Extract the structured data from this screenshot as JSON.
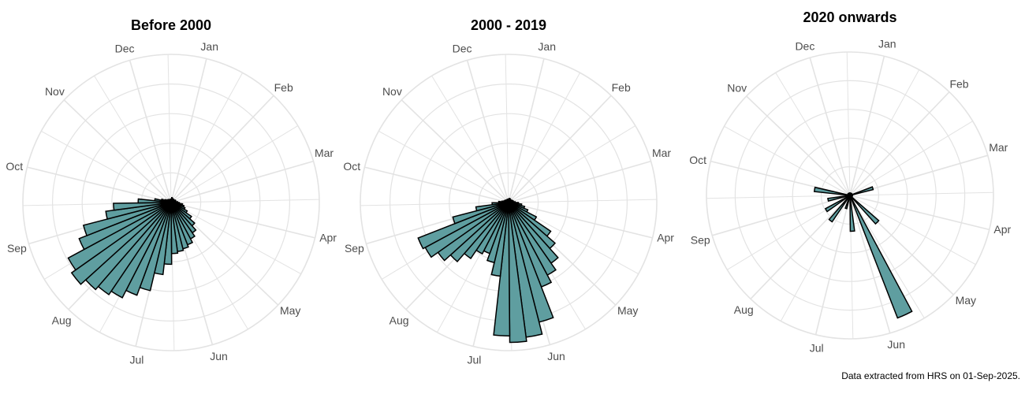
{
  "caption": "Data extracted from HRS on 01-Sep-2025.",
  "colors": {
    "bar_fill": "#5f9ea0",
    "bar_stroke": "#000000",
    "grid": "#e3e3e3",
    "label": "#4d4d4d"
  },
  "chart_data": [
    {
      "type": "bar",
      "coordinates": "polar",
      "title": "Before 2000",
      "months": [
        "Jan",
        "Feb",
        "Mar",
        "Apr",
        "May",
        "Jun",
        "Jul",
        "Aug",
        "Sep",
        "Oct",
        "Nov",
        "Dec"
      ],
      "month_label_day": [
        14,
        45,
        73,
        104,
        134,
        165,
        195,
        226,
        257,
        287,
        318,
        348
      ],
      "bin_days": 7,
      "bins_start_day": [
        0,
        7,
        14,
        21,
        28,
        35,
        42,
        49,
        56,
        63,
        70,
        77,
        84,
        91,
        98,
        105,
        112,
        119,
        126,
        133,
        140,
        147,
        154,
        161,
        168,
        175,
        182,
        189,
        196,
        203,
        210,
        217,
        224,
        231,
        238,
        245,
        252,
        259,
        266,
        273,
        280,
        287,
        294,
        301,
        308,
        315,
        322,
        329,
        336,
        343,
        350,
        357
      ],
      "values": [
        4,
        6,
        5,
        5,
        4,
        5,
        4,
        4,
        5,
        6,
        6,
        5,
        8,
        10,
        14,
        16,
        18,
        22,
        30,
        38,
        45,
        50,
        55,
        58,
        60,
        62,
        75,
        88,
        110,
        120,
        130,
        135,
        140,
        148,
        142,
        120,
        110,
        80,
        70,
        40,
        20,
        12,
        8,
        6,
        5,
        5,
        4,
        4,
        4,
        4,
        4,
        4
      ],
      "rmax": 180,
      "grid_rings": 5,
      "grid_spokes": 24
    },
    {
      "type": "bar",
      "coordinates": "polar",
      "title": "2000 - 2019",
      "months": [
        "Jan",
        "Feb",
        "Mar",
        "Apr",
        "May",
        "Jun",
        "Jul",
        "Aug",
        "Sep",
        "Oct",
        "Nov",
        "Dec"
      ],
      "month_label_day": [
        14,
        45,
        73,
        104,
        134,
        165,
        195,
        226,
        257,
        287,
        318,
        348
      ],
      "bin_days": 7,
      "bins_start_day": [
        0,
        7,
        14,
        21,
        28,
        35,
        42,
        49,
        56,
        63,
        70,
        77,
        84,
        91,
        98,
        105,
        112,
        119,
        126,
        133,
        140,
        147,
        154,
        161,
        168,
        175,
        182,
        189,
        196,
        203,
        210,
        217,
        224,
        231,
        238,
        245,
        252,
        259,
        266,
        273,
        280,
        287,
        294,
        301,
        308,
        315,
        322,
        329,
        336,
        343,
        350,
        357
      ],
      "values": [
        4,
        5,
        4,
        5,
        4,
        4,
        4,
        4,
        5,
        5,
        6,
        5,
        8,
        12,
        16,
        20,
        25,
        38,
        62,
        75,
        90,
        100,
        110,
        150,
        165,
        170,
        162,
        90,
        75,
        66,
        70,
        82,
        95,
        105,
        115,
        118,
        70,
        40,
        20,
        12,
        8,
        6,
        5,
        5,
        4,
        4,
        4,
        4,
        4,
        4,
        4,
        4
      ],
      "rmax": 180,
      "grid_rings": 5,
      "grid_spokes": 24
    },
    {
      "type": "bar",
      "coordinates": "polar",
      "title": "2020 onwards",
      "months": [
        "Jan",
        "Feb",
        "Mar",
        "Apr",
        "May",
        "Jun",
        "Jul",
        "Aug",
        "Sep",
        "Oct",
        "Nov",
        "Dec"
      ],
      "month_label_day": [
        14,
        45,
        73,
        104,
        134,
        165,
        195,
        226,
        257,
        287,
        318,
        348
      ],
      "bin_days": 7,
      "bins_start_day": [
        0,
        7,
        14,
        21,
        28,
        35,
        42,
        49,
        56,
        63,
        70,
        77,
        84,
        91,
        98,
        105,
        112,
        119,
        126,
        133,
        140,
        147,
        154,
        161,
        168,
        175,
        182,
        189,
        196,
        203,
        210,
        217,
        224,
        231,
        238,
        245,
        252,
        259,
        266,
        273,
        280,
        287,
        294,
        301,
        308,
        315,
        322,
        329,
        336,
        343,
        350,
        357
      ],
      "values": [
        2,
        3,
        3,
        2,
        3,
        3,
        3,
        3,
        3,
        3,
        30,
        3,
        3,
        3,
        3,
        3,
        3,
        3,
        3,
        48,
        3,
        3,
        165,
        3,
        3,
        45,
        3,
        3,
        17,
        3,
        3,
        40,
        3,
        3,
        35,
        3,
        3,
        28,
        3,
        3,
        45,
        3,
        3,
        3,
        3,
        3,
        3,
        3,
        3,
        3,
        3,
        3
      ],
      "rmax": 180,
      "grid_rings": 5,
      "grid_spokes": 24
    }
  ]
}
